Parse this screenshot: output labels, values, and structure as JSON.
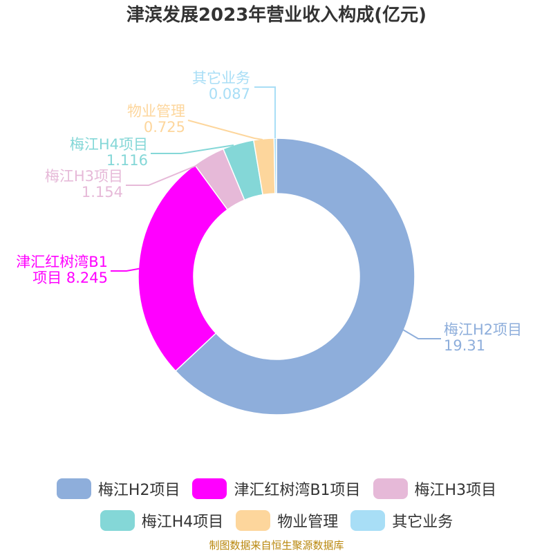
{
  "chart_data": {
    "type": "pie",
    "donut": true,
    "title": "津滨发展2023年营业收入构成(亿元)",
    "slices": [
      {
        "name": "梅江H2项目",
        "value": 19.31,
        "color": "#8eaedb",
        "label": [
          "梅江H2项目",
          "19.31"
        ]
      },
      {
        "name": "津汇红树湾B1项目",
        "value": 8.245,
        "color": "#ff00ff",
        "label": [
          "津汇红树湾B1",
          "项目 8.245"
        ]
      },
      {
        "name": "梅江H3项目",
        "value": 1.154,
        "color": "#e6b9d8",
        "label": [
          "梅江H3项目",
          "1.154"
        ]
      },
      {
        "name": "梅江H4项目",
        "value": 1.116,
        "color": "#84d7d7",
        "label": [
          "梅江H4项目",
          "1.116"
        ]
      },
      {
        "name": "物业管理",
        "value": 0.725,
        "color": "#fdd69c",
        "label": [
          "物业管理",
          "0.725"
        ]
      },
      {
        "name": "其它业务",
        "value": 0.087,
        "color": "#a8def6",
        "label": [
          "其它业务",
          "0.087"
        ]
      }
    ],
    "legend_position": "bottom"
  },
  "source": "制图数据来自恒生聚源数据库"
}
